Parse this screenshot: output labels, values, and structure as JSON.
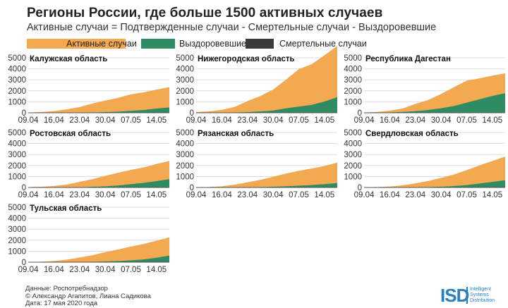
{
  "header": {
    "title": "Регионы России, где больше 1500 активных случаев",
    "subtitle": "Активные случаи = Подтвержденные случаи - Смертельные случаи - Выздоровевшие"
  },
  "legend": [
    {
      "label": "Активные случаи",
      "color": "#F2A950"
    },
    {
      "label": "Выздоровевшие",
      "color": "#2E8B62"
    },
    {
      "label": "Смертельные случаи",
      "color": "#3B3B3B"
    }
  ],
  "colors": {
    "active": "#F2A950",
    "recovered": "#2E8B62",
    "deaths": "#3B3B3B",
    "grid": "#dddddd",
    "axis": "#555555"
  },
  "footer": {
    "source": "Данные: Роспотребнадзор",
    "authors": "© Александр Агапитов, Лиана Садикова",
    "date": "Дата: 17 мая 2020 года"
  },
  "logo": {
    "mark": "ISD",
    "line1": "Intelligent",
    "line2": "Systems",
    "line3": "Distribution"
  },
  "chart_data": [
    {
      "type": "area",
      "title": "Калужская область",
      "x": [
        "09.04",
        "12.04",
        "16.04",
        "19.04",
        "23.04",
        "26.04",
        "30.04",
        "03.05",
        "07.05",
        "10.05",
        "14.05",
        "17.05"
      ],
      "x_ticks": [
        "09.04",
        "16.04",
        "23.04",
        "30.04",
        "07.05",
        "14.05"
      ],
      "ylim": [
        0,
        5000
      ],
      "y_ticks": [
        0,
        1000,
        2000,
        3000,
        4000,
        5000
      ],
      "series": [
        {
          "name": "Активные случаи",
          "values": [
            20,
            60,
            150,
            300,
            500,
            800,
            1050,
            1250,
            1500,
            1600,
            1720,
            1850
          ]
        },
        {
          "name": "Выздоровевшие",
          "values": [
            0,
            2,
            5,
            10,
            20,
            40,
            60,
            100,
            180,
            250,
            380,
            480
          ]
        },
        {
          "name": "Смертельные случаи",
          "values": [
            0,
            0,
            0,
            0,
            0,
            2,
            3,
            5,
            6,
            8,
            10,
            12
          ]
        }
      ]
    },
    {
      "type": "area",
      "title": "Нижегородская область",
      "x": [
        "09.04",
        "12.04",
        "16.04",
        "19.04",
        "23.04",
        "26.04",
        "30.04",
        "03.05",
        "07.05",
        "10.05",
        "14.05",
        "17.05"
      ],
      "x_ticks": [
        "09.04",
        "16.04",
        "23.04",
        "30.04",
        "07.05",
        "14.05"
      ],
      "ylim": [
        0,
        5000
      ],
      "y_ticks": [
        0,
        1000,
        2000,
        3000,
        4000,
        5000
      ],
      "series": [
        {
          "name": "Активные случаи",
          "values": [
            60,
            120,
            250,
            500,
            1000,
            1400,
            1900,
            2600,
            3400,
            3700,
            4200,
            4650
          ]
        },
        {
          "name": "Выздоровевшие",
          "values": [
            2,
            5,
            10,
            30,
            60,
            120,
            200,
            400,
            550,
            700,
            1000,
            1400
          ]
        },
        {
          "name": "Смертельные случаи",
          "values": [
            0,
            0,
            1,
            2,
            3,
            5,
            8,
            12,
            15,
            18,
            22,
            25
          ]
        }
      ]
    },
    {
      "type": "area",
      "title": "Республика Дагестан",
      "x": [
        "09.04",
        "12.04",
        "16.04",
        "19.04",
        "23.04",
        "26.04",
        "30.04",
        "03.05",
        "07.05",
        "10.05",
        "14.05",
        "17.05"
      ],
      "x_ticks": [
        "09.04",
        "16.04",
        "23.04",
        "30.04",
        "07.05",
        "14.05"
      ],
      "ylim": [
        0,
        5000
      ],
      "y_ticks": [
        0,
        1000,
        2000,
        3000,
        4000,
        5000
      ],
      "series": [
        {
          "name": "Активные случаи",
          "values": [
            20,
            60,
            150,
            300,
            650,
            900,
            1300,
            1700,
            2000,
            1900,
            1850,
            1800
          ]
        },
        {
          "name": "Выздоровевшие",
          "values": [
            5,
            15,
            40,
            80,
            150,
            250,
            400,
            600,
            900,
            1200,
            1500,
            1750
          ]
        },
        {
          "name": "Смертельные случаи",
          "values": [
            0,
            1,
            2,
            4,
            6,
            10,
            15,
            20,
            25,
            30,
            35,
            40
          ]
        }
      ]
    },
    {
      "type": "area",
      "title": "Ростовская область",
      "x": [
        "09.04",
        "12.04",
        "16.04",
        "19.04",
        "23.04",
        "26.04",
        "30.04",
        "03.05",
        "07.05",
        "10.05",
        "14.05",
        "17.05"
      ],
      "x_ticks": [
        "09.04",
        "16.04",
        "23.04",
        "30.04",
        "07.05",
        "14.05"
      ],
      "ylim": [
        0,
        5000
      ],
      "y_ticks": [
        0,
        1000,
        2000,
        3000,
        4000,
        5000
      ],
      "series": [
        {
          "name": "Активные случаи",
          "values": [
            20,
            60,
            130,
            250,
            480,
            700,
            950,
            1150,
            1300,
            1400,
            1550,
            1650
          ]
        },
        {
          "name": "Выздоровевшие",
          "values": [
            1,
            3,
            8,
            15,
            30,
            60,
            100,
            180,
            300,
            420,
            580,
            750
          ]
        },
        {
          "name": "Смертельные случаи",
          "values": [
            0,
            0,
            0,
            1,
            2,
            3,
            4,
            5,
            6,
            7,
            8,
            9
          ]
        }
      ]
    },
    {
      "type": "area",
      "title": "Рязанская область",
      "x": [
        "09.04",
        "12.04",
        "16.04",
        "19.04",
        "23.04",
        "26.04",
        "30.04",
        "03.05",
        "07.05",
        "10.05",
        "14.05",
        "17.05"
      ],
      "x_ticks": [
        "09.04",
        "16.04",
        "23.04",
        "30.04",
        "07.05",
        "14.05"
      ],
      "ylim": [
        0,
        5000
      ],
      "y_ticks": [
        0,
        1000,
        2000,
        3000,
        4000,
        5000
      ],
      "series": [
        {
          "name": "Активные случаи",
          "values": [
            10,
            40,
            100,
            250,
            450,
            650,
            900,
            1150,
            1350,
            1500,
            1650,
            1850
          ]
        },
        {
          "name": "Выздоровевшие",
          "values": [
            0,
            2,
            5,
            10,
            20,
            40,
            70,
            110,
            160,
            220,
            300,
            400
          ]
        },
        {
          "name": "Смертельные случаи",
          "values": [
            0,
            0,
            0,
            0,
            1,
            2,
            3,
            4,
            5,
            6,
            7,
            8
          ]
        }
      ]
    },
    {
      "type": "area",
      "title": "Свердловская область",
      "x": [
        "09.04",
        "12.04",
        "16.04",
        "19.04",
        "23.04",
        "26.04",
        "30.04",
        "03.05",
        "07.05",
        "10.05",
        "14.05",
        "17.05"
      ],
      "x_ticks": [
        "09.04",
        "16.04",
        "23.04",
        "30.04",
        "07.05",
        "14.05"
      ],
      "ylim": [
        0,
        5000
      ],
      "y_ticks": [
        0,
        1000,
        2000,
        3000,
        4000,
        5000
      ],
      "series": [
        {
          "name": "Активные случаи",
          "values": [
            10,
            30,
            80,
            180,
            350,
            550,
            800,
            1050,
            1350,
            1650,
            1900,
            2150
          ]
        },
        {
          "name": "Выздоровевшие",
          "values": [
            1,
            3,
            8,
            15,
            25,
            40,
            70,
            120,
            220,
            350,
            500,
            650
          ]
        },
        {
          "name": "Смертельные случаи",
          "values": [
            0,
            0,
            0,
            1,
            2,
            3,
            4,
            6,
            8,
            10,
            12,
            15
          ]
        }
      ]
    },
    {
      "type": "area",
      "title": "Тульская область",
      "x": [
        "09.04",
        "12.04",
        "16.04",
        "19.04",
        "23.04",
        "26.04",
        "30.04",
        "03.05",
        "07.05",
        "10.05",
        "14.05",
        "17.05"
      ],
      "x_ticks": [
        "09.04",
        "16.04",
        "23.04",
        "30.04",
        "07.05",
        "14.05"
      ],
      "ylim": [
        0,
        5000
      ],
      "y_ticks": [
        0,
        1000,
        2000,
        3000,
        4000,
        5000
      ],
      "series": [
        {
          "name": "Активные случаи",
          "values": [
            10,
            40,
            100,
            220,
            400,
            600,
            850,
            1050,
            1250,
            1400,
            1550,
            1650
          ]
        },
        {
          "name": "Выздоровевшие",
          "values": [
            0,
            2,
            5,
            10,
            20,
            35,
            60,
            100,
            160,
            250,
            400,
            600
          ]
        },
        {
          "name": "Смертельные случаи",
          "values": [
            0,
            0,
            0,
            0,
            1,
            2,
            3,
            4,
            5,
            6,
            7,
            8
          ]
        }
      ]
    }
  ]
}
